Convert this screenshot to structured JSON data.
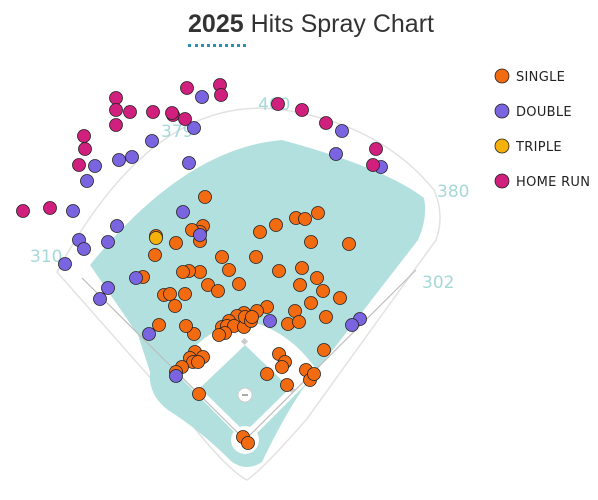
{
  "title": {
    "year": "2025",
    "text": "Hits Spray Chart"
  },
  "chart_data": {
    "type": "scatter",
    "title": "2025 Hits Spray Chart",
    "wall_distances": [
      "310",
      "379",
      "400",
      "380",
      "302"
    ],
    "legend": [
      {
        "label": "SINGLE",
        "color": "#f26b10"
      },
      {
        "label": "DOUBLE",
        "color": "#7b64e0"
      },
      {
        "label": "TRIPLE",
        "color": "#f5b00a"
      },
      {
        "label": "HOME RUN",
        "color": "#d01f7d"
      }
    ],
    "series": [
      {
        "name": "SINGLE",
        "color": "#f26b10",
        "points": [
          [
            205,
            197
          ],
          [
            203,
            226
          ],
          [
            200,
            232
          ],
          [
            200,
            241
          ],
          [
            192,
            230
          ],
          [
            260,
            232
          ],
          [
            276,
            225
          ],
          [
            296,
            218
          ],
          [
            305,
            219
          ],
          [
            318,
            213
          ],
          [
            311,
            242
          ],
          [
            349,
            244
          ],
          [
            222,
            257
          ],
          [
            256,
            257
          ],
          [
            229,
            270
          ],
          [
            200,
            272
          ],
          [
            189,
            271
          ],
          [
            183,
            272
          ],
          [
            176,
            243
          ],
          [
            156,
            236
          ],
          [
            155,
            255
          ],
          [
            143,
            277
          ],
          [
            164,
            295
          ],
          [
            170,
            294
          ],
          [
            185,
            294
          ],
          [
            175,
            306
          ],
          [
            208,
            285
          ],
          [
            218,
            291
          ],
          [
            239,
            284
          ],
          [
            279,
            271
          ],
          [
            302,
            268
          ],
          [
            317,
            278
          ],
          [
            300,
            285
          ],
          [
            323,
            291
          ],
          [
            311,
            303
          ],
          [
            340,
            298
          ],
          [
            326,
            317
          ],
          [
            295,
            311
          ],
          [
            288,
            324
          ],
          [
            299,
            322
          ],
          [
            267,
            307
          ],
          [
            257,
            311
          ],
          [
            244,
            313
          ],
          [
            237,
            316
          ],
          [
            229,
            321
          ],
          [
            222,
            327
          ],
          [
            227,
            326
          ],
          [
            234,
            326
          ],
          [
            244,
            327
          ],
          [
            245,
            317
          ],
          [
            251,
            321
          ],
          [
            252,
            317
          ],
          [
            225,
            333
          ],
          [
            219,
            335
          ],
          [
            194,
            334
          ],
          [
            186,
            326
          ],
          [
            159,
            325
          ],
          [
            195,
            352
          ],
          [
            203,
            357
          ],
          [
            190,
            358
          ],
          [
            193,
            362
          ],
          [
            198,
            362
          ],
          [
            182,
            367
          ],
          [
            176,
            372
          ],
          [
            279,
            354
          ],
          [
            285,
            362
          ],
          [
            282,
            367
          ],
          [
            267,
            374
          ],
          [
            287,
            385
          ],
          [
            306,
            370
          ],
          [
            310,
            380
          ],
          [
            314,
            374
          ],
          [
            324,
            350
          ],
          [
            199,
            394
          ],
          [
            243,
            437
          ],
          [
            248,
            443
          ]
        ]
      },
      {
        "name": "DOUBLE",
        "color": "#7b64e0",
        "points": [
          [
            202,
            97
          ],
          [
            194,
            128
          ],
          [
            152,
            141
          ],
          [
            132,
            157
          ],
          [
            119,
            160
          ],
          [
            95,
            166
          ],
          [
            87,
            181
          ],
          [
            73,
            211
          ],
          [
            79,
            240
          ],
          [
            84,
            249
          ],
          [
            108,
            242
          ],
          [
            117,
            226
          ],
          [
            189,
            163
          ],
          [
            183,
            212
          ],
          [
            200,
            235
          ],
          [
            65,
            264
          ],
          [
            136,
            278
          ],
          [
            108,
            288
          ],
          [
            100,
            299
          ],
          [
            149,
            334
          ],
          [
            176,
            376
          ],
          [
            270,
            321
          ],
          [
            360,
            319
          ],
          [
            352,
            325
          ],
          [
            342,
            131
          ],
          [
            336,
            154
          ],
          [
            381,
            167
          ]
        ]
      },
      {
        "name": "TRIPLE",
        "color": "#f5b00a",
        "points": [
          [
            156,
            238
          ]
        ]
      },
      {
        "name": "HOME RUN",
        "color": "#d01f7d",
        "points": [
          [
            187,
            88
          ],
          [
            220,
            85
          ],
          [
            221,
            95
          ],
          [
            116,
            98
          ],
          [
            116,
            110
          ],
          [
            130,
            112
          ],
          [
            153,
            112
          ],
          [
            173,
            115
          ],
          [
            172,
            113
          ],
          [
            116,
            125
          ],
          [
            185,
            119
          ],
          [
            84,
            136
          ],
          [
            85,
            149
          ],
          [
            79,
            165
          ],
          [
            23,
            211
          ],
          [
            50,
            208
          ],
          [
            278,
            104
          ],
          [
            302,
            110
          ],
          [
            326,
            123
          ],
          [
            376,
            149
          ],
          [
            373,
            165
          ]
        ]
      }
    ]
  }
}
